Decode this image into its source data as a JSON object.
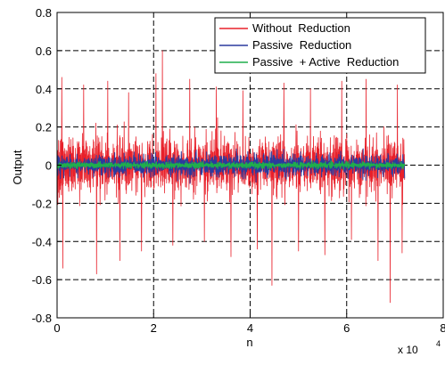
{
  "chart_data": {
    "type": "line",
    "title": "",
    "xlabel": "n",
    "ylabel": "Output",
    "x_exponent_label": "x 10",
    "x_exponent_power": "4",
    "xlim": [
      0,
      8
    ],
    "ylim": [
      -0.8,
      0.8
    ],
    "x_ticks": [
      0,
      2,
      4,
      6,
      8
    ],
    "y_ticks": [
      -0.8,
      -0.6,
      -0.4,
      -0.2,
      0,
      0.2,
      0.4,
      0.6,
      0.8
    ],
    "x_tick_labels": [
      "0",
      "2",
      "4",
      "6",
      "8"
    ],
    "y_tick_labels": [
      "-0.8",
      "-0.6",
      "-0.4",
      "-0.2",
      "0",
      "0.2",
      "0.4",
      "0.6",
      "0.8"
    ],
    "grid": true,
    "legend_position": "top-right",
    "data_x_end": 7.2,
    "series": [
      {
        "name": "Without  Reduction",
        "color": "#e8202a",
        "typical_amplitude": 0.2,
        "peak_max": 0.6,
        "peak_min": -0.72,
        "spikes": [
          {
            "x": 0.1,
            "y": 0.46
          },
          {
            "x": 0.12,
            "y": -0.54
          },
          {
            "x": 0.55,
            "y": 0.42
          },
          {
            "x": 0.82,
            "y": -0.57
          },
          {
            "x": 1.05,
            "y": 0.44
          },
          {
            "x": 1.3,
            "y": -0.5
          },
          {
            "x": 1.48,
            "y": 0.38
          },
          {
            "x": 1.75,
            "y": -0.45
          },
          {
            "x": 2.05,
            "y": 0.48
          },
          {
            "x": 2.18,
            "y": 0.6
          },
          {
            "x": 2.4,
            "y": -0.42
          },
          {
            "x": 2.75,
            "y": 0.45
          },
          {
            "x": 3.05,
            "y": -0.4
          },
          {
            "x": 3.3,
            "y": 0.41
          },
          {
            "x": 3.6,
            "y": -0.48
          },
          {
            "x": 3.85,
            "y": 0.39
          },
          {
            "x": 4.15,
            "y": -0.44
          },
          {
            "x": 4.45,
            "y": -0.63
          },
          {
            "x": 4.7,
            "y": 0.43
          },
          {
            "x": 5.0,
            "y": -0.45
          },
          {
            "x": 5.25,
            "y": 0.4
          },
          {
            "x": 5.55,
            "y": -0.47
          },
          {
            "x": 5.9,
            "y": 0.44
          },
          {
            "x": 6.1,
            "y": -0.39
          },
          {
            "x": 6.4,
            "y": 0.45
          },
          {
            "x": 6.65,
            "y": -0.5
          },
          {
            "x": 6.9,
            "y": -0.72
          },
          {
            "x": 7.05,
            "y": 0.42
          },
          {
            "x": 7.15,
            "y": -0.46
          }
        ]
      },
      {
        "name": "Passive  Reduction",
        "color": "#2b3a9e",
        "typical_amplitude": 0.07,
        "peak_max": 0.13,
        "peak_min": -0.13
      },
      {
        "name": "Passive  + Active  Reduction",
        "color": "#1fae4c",
        "typical_amplitude": 0.022,
        "peak_max": 0.03,
        "peak_min": -0.03
      }
    ]
  }
}
